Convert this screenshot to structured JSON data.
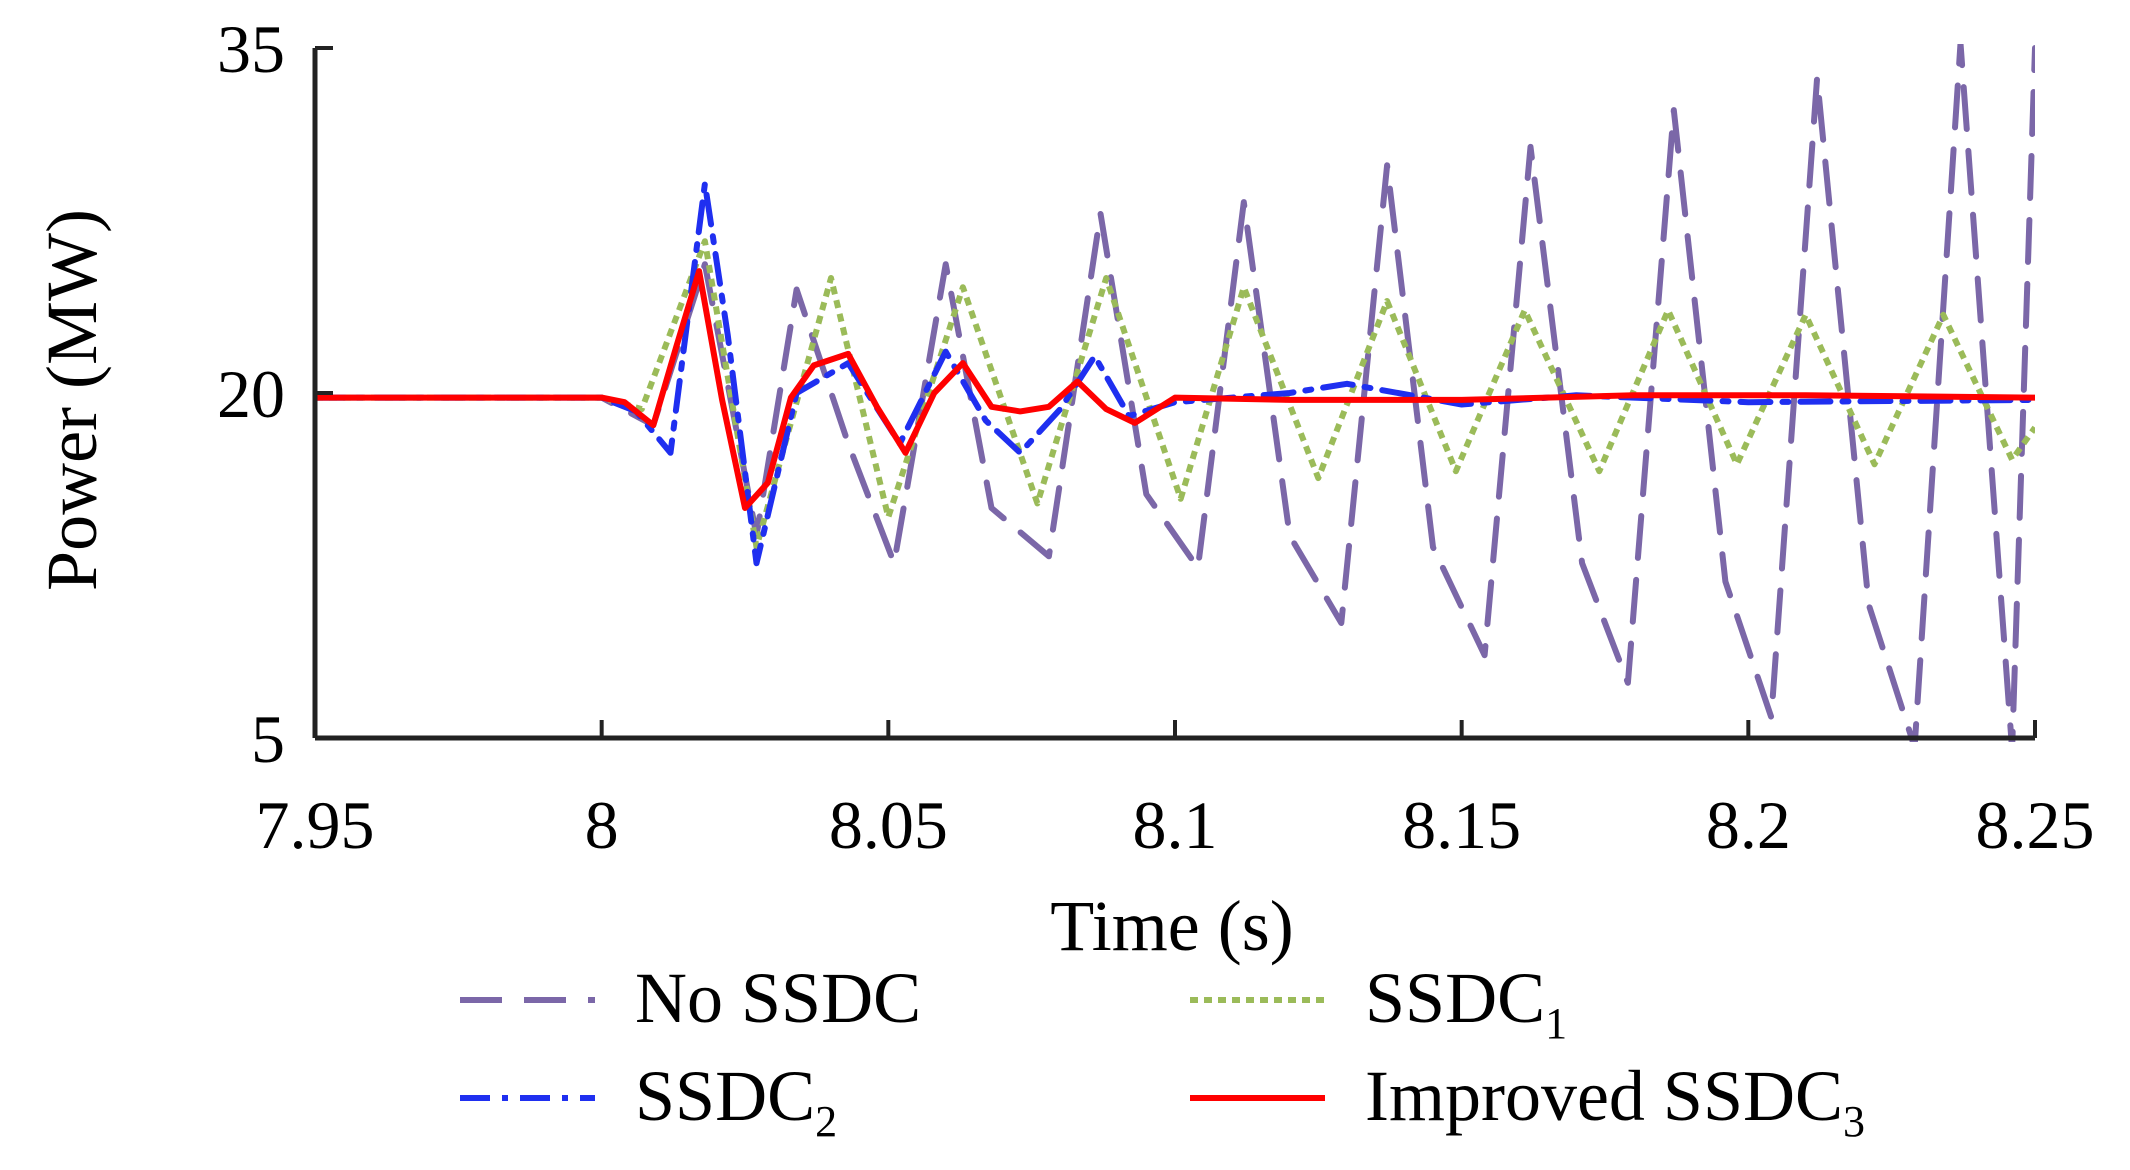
{
  "chart_data": {
    "type": "line",
    "title": "",
    "xlabel": "Time (s)",
    "ylabel": "Power (MW)",
    "xlim": [
      7.95,
      8.25
    ],
    "ylim": [
      5,
      35
    ],
    "x_ticks": [
      7.95,
      8,
      8.05,
      8.1,
      8.15,
      8.2,
      8.25
    ],
    "x_tick_labels": [
      "7.95",
      "8",
      "8.05",
      "8.1",
      "8.15",
      "8.2",
      "8.25"
    ],
    "y_ticks": [
      5,
      20,
      35
    ],
    "y_tick_labels": [
      "5",
      "20",
      "35"
    ],
    "grid": false,
    "legend_position": "bottom",
    "series": [
      {
        "name": "No SSDC",
        "legend_text": "No SSDC",
        "legend_sub": "",
        "color": "#7b67a8",
        "style": "dashed",
        "x": [
          7.95,
          8.0,
          8.009,
          8.018,
          8.027,
          8.034,
          8.043,
          8.051,
          8.06,
          8.068,
          8.078,
          8.087,
          8.095,
          8.104,
          8.112,
          8.12,
          8.129,
          8.137,
          8.145,
          8.154,
          8.162,
          8.171,
          8.179,
          8.187,
          8.196,
          8.204,
          8.212,
          8.221,
          8.229,
          8.237,
          8.246,
          8.25
        ],
        "y": [
          19.8,
          19.8,
          18.6,
          25.6,
          13.8,
          24.5,
          17.8,
          12.6,
          25.6,
          15.0,
          12.9,
          27.8,
          15.6,
          12.4,
          28.3,
          13.8,
          10.0,
          29.9,
          13.3,
          8.6,
          30.7,
          12.6,
          7.4,
          32.3,
          11.8,
          5.9,
          33.7,
          10.8,
          4.6,
          35.2,
          4.5,
          35.0
        ]
      },
      {
        "name": "SSDC1",
        "legend_text": "SSDC",
        "legend_sub": "1",
        "color": "#9bbb59",
        "style": "dotted",
        "x": [
          7.95,
          8.0,
          8.007,
          8.018,
          8.027,
          8.04,
          8.05,
          8.063,
          8.076,
          8.088,
          8.101,
          8.112,
          8.125,
          8.137,
          8.149,
          8.161,
          8.174,
          8.186,
          8.198,
          8.21,
          8.222,
          8.234,
          8.246,
          8.25
        ],
        "y": [
          19.8,
          19.8,
          19.3,
          26.6,
          13.3,
          25.0,
          14.6,
          24.6,
          15.2,
          25.0,
          15.4,
          24.6,
          16.3,
          24.0,
          16.6,
          23.6,
          16.6,
          23.6,
          16.9,
          23.4,
          16.9,
          23.4,
          17.1,
          18.5
        ]
      },
      {
        "name": "SSDC2",
        "legend_text": "SSDC",
        "legend_sub": "2",
        "color": "#1f2ff0",
        "style": "dashdot",
        "x": [
          7.95,
          8.0,
          8.006,
          8.012,
          8.018,
          8.022,
          8.027,
          8.034,
          8.043,
          8.052,
          8.06,
          8.067,
          8.073,
          8.08,
          8.086,
          8.092,
          8.1,
          8.11,
          8.12,
          8.13,
          8.15,
          8.17,
          8.2,
          8.25
        ],
        "y": [
          19.8,
          19.8,
          19.2,
          17.4,
          29.1,
          22.5,
          12.6,
          20.0,
          21.3,
          17.8,
          21.8,
          18.8,
          17.4,
          19.3,
          21.6,
          19.0,
          19.6,
          19.8,
          20.0,
          20.4,
          19.5,
          19.9,
          19.6,
          19.7
        ]
      },
      {
        "name": "Improved SSDC3",
        "legend_text": "Improved SSDC",
        "legend_sub": "3",
        "color": "#ff0000",
        "style": "solid",
        "x": [
          7.95,
          8.0,
          8.004,
          8.009,
          8.013,
          8.017,
          8.021,
          8.025,
          8.029,
          8.033,
          8.037,
          8.043,
          8.048,
          8.053,
          8.058,
          8.063,
          8.068,
          8.073,
          8.078,
          8.083,
          8.088,
          8.093,
          8.1,
          8.12,
          8.15,
          8.18,
          8.21,
          8.25
        ],
        "y": [
          19.8,
          19.8,
          19.6,
          18.6,
          22.0,
          25.3,
          19.7,
          15.0,
          16.1,
          19.8,
          21.2,
          21.7,
          19.4,
          17.4,
          20.0,
          21.3,
          19.4,
          19.2,
          19.4,
          20.5,
          19.3,
          18.7,
          19.8,
          19.7,
          19.7,
          19.9,
          19.9,
          19.8
        ]
      }
    ]
  }
}
